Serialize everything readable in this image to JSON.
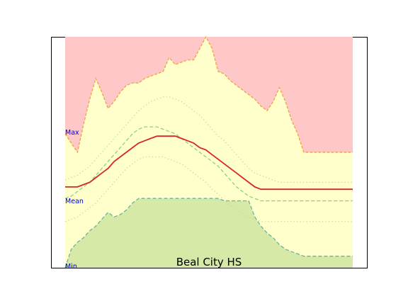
{
  "chart_data": {
    "type": "area",
    "title": "Beal City HS",
    "xlabel": "",
    "ylabel": "",
    "grid": false,
    "annotations": [
      "Max",
      "Mean",
      "Min"
    ],
    "x": [
      0,
      1,
      2,
      3,
      4,
      5,
      6,
      7,
      8,
      9,
      10,
      11,
      12,
      13,
      14,
      15,
      16,
      17,
      18,
      19,
      20,
      21,
      22,
      23,
      24,
      25,
      26,
      27,
      28,
      29,
      30,
      31,
      32,
      33,
      34,
      35,
      36,
      37,
      38,
      39,
      40,
      41,
      42,
      43,
      44,
      45,
      46,
      47
    ],
    "ylim": [
      0,
      100
    ],
    "series": [
      {
        "role": "record_high",
        "values": [
          58,
          54,
          50,
          62,
          73,
          82,
          76,
          69,
          72,
          76,
          79,
          80,
          80,
          82,
          83,
          84,
          85,
          91,
          88,
          89,
          90,
          90,
          95,
          100,
          95,
          85,
          84,
          81,
          79,
          77,
          75,
          73,
          70,
          68,
          72,
          78,
          72,
          64,
          58,
          50,
          50,
          50,
          50,
          50,
          50,
          50,
          50,
          50
        ]
      },
      {
        "role": "normal_high",
        "values": [
          38,
          39,
          40,
          42,
          44,
          47,
          50,
          53,
          56,
          59,
          62,
          65,
          68,
          70,
          72,
          73,
          74,
          74,
          73,
          72,
          70,
          68,
          66,
          63,
          60,
          57,
          55,
          52,
          49,
          46,
          43,
          41,
          40,
          39,
          38,
          37,
          37,
          37,
          37,
          37,
          37,
          37,
          37,
          37,
          37,
          37,
          37,
          37
        ]
      },
      {
        "role": "mean",
        "values": [
          35,
          35,
          35,
          36,
          37,
          39,
          41,
          43,
          46,
          48,
          50,
          52,
          54,
          55,
          56,
          57,
          57,
          57,
          57,
          56,
          55,
          54,
          52,
          51,
          49,
          47,
          45,
          43,
          41,
          39,
          37,
          35,
          34,
          34,
          34,
          34,
          34,
          34,
          34,
          34,
          34,
          34,
          34,
          34,
          34,
          34,
          34,
          34
        ]
      },
      {
        "role": "max_mean",
        "values": [
          30,
          31,
          33,
          35,
          37,
          40,
          43,
          46,
          49,
          52,
          55,
          58,
          60,
          61,
          61,
          61,
          60,
          59,
          58,
          56,
          54,
          52,
          50,
          48,
          46,
          44,
          41,
          38,
          35,
          33,
          31,
          30,
          29,
          29,
          29,
          29,
          29,
          29,
          29,
          29,
          29,
          29,
          29,
          29,
          29,
          29,
          29,
          29
        ]
      },
      {
        "role": "normal_low",
        "values": [
          20,
          21,
          22,
          24,
          26,
          28,
          31,
          34,
          37,
          40,
          43,
          45,
          47,
          48,
          48,
          48,
          48,
          47,
          46,
          45,
          43,
          41,
          39,
          37,
          34,
          32,
          29,
          27,
          25,
          23,
          22,
          21,
          20,
          20,
          20,
          20,
          20,
          20,
          20,
          20,
          20,
          20,
          20,
          20,
          20,
          20,
          20,
          20
        ]
      },
      {
        "role": "record_low",
        "values": [
          0,
          8,
          11,
          13,
          16,
          18,
          21,
          24,
          22,
          23,
          25,
          28,
          30,
          30,
          30,
          30,
          30,
          30,
          30,
          30,
          30,
          30,
          30,
          30,
          30,
          30,
          29,
          29,
          29,
          29,
          29,
          22,
          18,
          15,
          13,
          10,
          8,
          7,
          6,
          5,
          5,
          5,
          5,
          5,
          5,
          5,
          5,
          5
        ]
      }
    ],
    "colors": {
      "above_max": "#ffc8c8",
      "envelope": "#ffffcc",
      "below_min": "#d6e9a6",
      "max_line": "#f4a44a",
      "mean_line": "#d62728",
      "max_mean_line": "#8fd07f",
      "normal_line": "#c8d8a8",
      "min_line": "#69b3a2",
      "annotation": "#0000cc"
    }
  }
}
